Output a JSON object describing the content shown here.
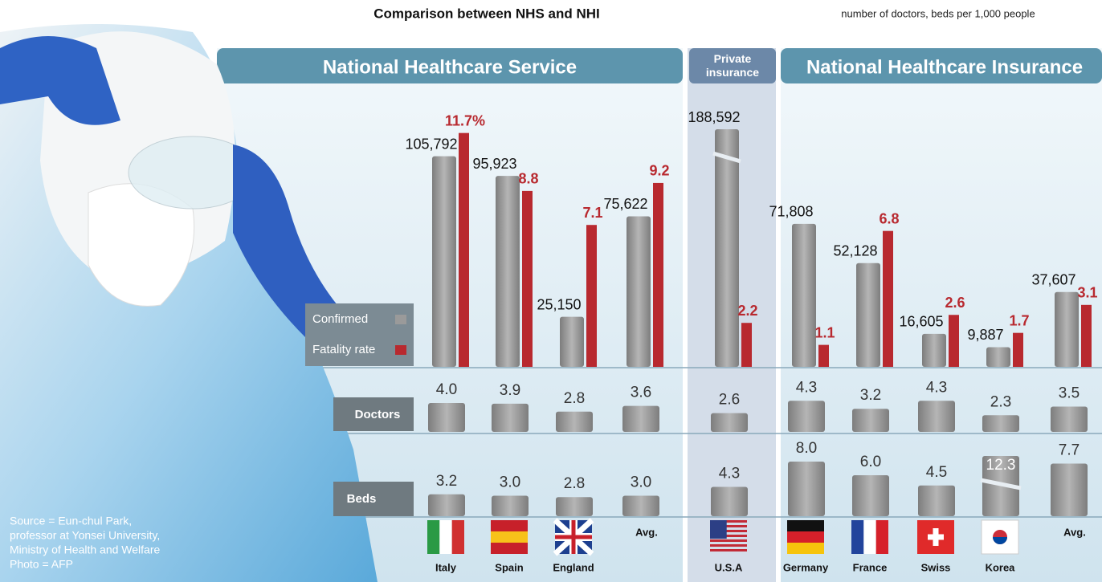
{
  "chart_data": [
    {
      "type": "bar",
      "title": "Comparison between NHS and NHI",
      "subtitle": "number of doctors, beds per 1,000 people",
      "groups": [
        {
          "name": "National Healthcare Service",
          "categories": [
            "Italy",
            "Spain",
            "England",
            "Avg."
          ]
        },
        {
          "name": "Private insurance",
          "categories": [
            "U.S.A"
          ]
        },
        {
          "name": "National Healthcare Insurance",
          "categories": [
            "Germany",
            "France",
            "Swiss",
            "Korea",
            "Avg."
          ]
        }
      ],
      "series": [
        {
          "name": "Confirmed",
          "color": "#9a9a9a",
          "values": [
            105792,
            95923,
            25150,
            75622,
            188592,
            71808,
            52128,
            16605,
            9887,
            37607
          ],
          "value_labels": [
            "105,792",
            "95,923",
            "25,150",
            "75,622",
            "188,592",
            "71,808",
            "52,128",
            "16,605",
            "9,887",
            "37,607"
          ]
        },
        {
          "name": "Fatality rate",
          "color": "#b8292f",
          "axis": "y2",
          "values": [
            11.7,
            8.8,
            7.1,
            9.2,
            2.2,
            1.1,
            6.8,
            2.6,
            1.7,
            3.1
          ],
          "value_labels": [
            "11.7%",
            "8.8",
            "7.1",
            "9.2",
            "2.2",
            "1.1",
            "6.8",
            "2.6",
            "1.7",
            "3.1"
          ]
        }
      ],
      "notes": [
        "Source = Eun-chul Park,",
        "professor at Yonsei University,",
        "Ministry of Health and Welfare",
        "Photo = AFP"
      ]
    },
    {
      "type": "bar",
      "title": "Doctors",
      "color": "#9a9a9a",
      "values": [
        4,
        3.9,
        2.8,
        3.6,
        2.6,
        4.3,
        3.2,
        4.3,
        2.3,
        3.5
      ],
      "value_labels": [
        "4.0",
        "3.9",
        "2.8",
        "3.6",
        "2.6",
        "4.3",
        "3.2",
        "4.3",
        "2.3",
        "3.5"
      ]
    },
    {
      "type": "bar",
      "title": "Beds",
      "color": "#9a9a9a",
      "values": [
        3.2,
        3,
        2.8,
        3,
        4.3,
        8,
        6,
        4.5,
        12.3,
        7.7
      ],
      "value_labels": [
        "3.2",
        "3.0",
        "2.8",
        "3.0",
        "4.3",
        "8.0",
        "6.0",
        "4.5",
        "12.3",
        "7.7"
      ]
    }
  ]
}
